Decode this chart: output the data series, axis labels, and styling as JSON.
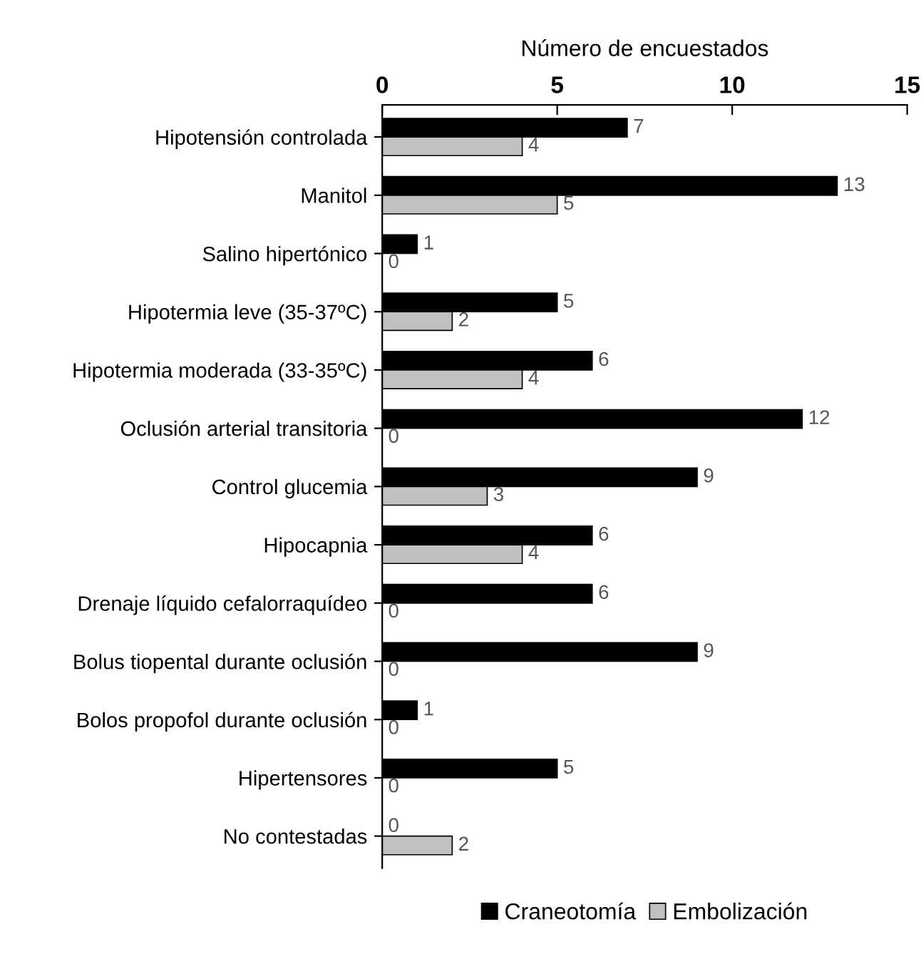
{
  "chart_data": {
    "type": "bar",
    "orientation": "horizontal",
    "xlabel": "Número de encuestados",
    "categories": [
      "Hipotensión controlada",
      "Manitol",
      "Salino hipertónico",
      "Hipotermia leve (35-37ºC)",
      "Hipotermia moderada (33-35ºC)",
      "Oclusión arterial transitoria",
      "Control glucemia",
      "Hipocapnia",
      "Drenaje líquido cefalorraquídeo",
      "Bolus tiopental durante oclusión",
      "Bolos propofol durante oclusión",
      "Hipertensores",
      "No contestadas"
    ],
    "series": [
      {
        "name": "Craneotomía",
        "color": "#000000",
        "values": [
          7,
          13,
          1,
          5,
          6,
          12,
          9,
          6,
          6,
          9,
          1,
          5,
          0
        ]
      },
      {
        "name": "Embolización",
        "color": "#c0c0c0",
        "values": [
          4,
          5,
          0,
          2,
          4,
          0,
          3,
          4,
          0,
          0,
          0,
          0,
          2
        ]
      }
    ],
    "xlim": [
      0,
      15
    ],
    "xticks": [
      0,
      5,
      10,
      15
    ],
    "data_labels": true,
    "legend": "bottom",
    "grid": false
  }
}
